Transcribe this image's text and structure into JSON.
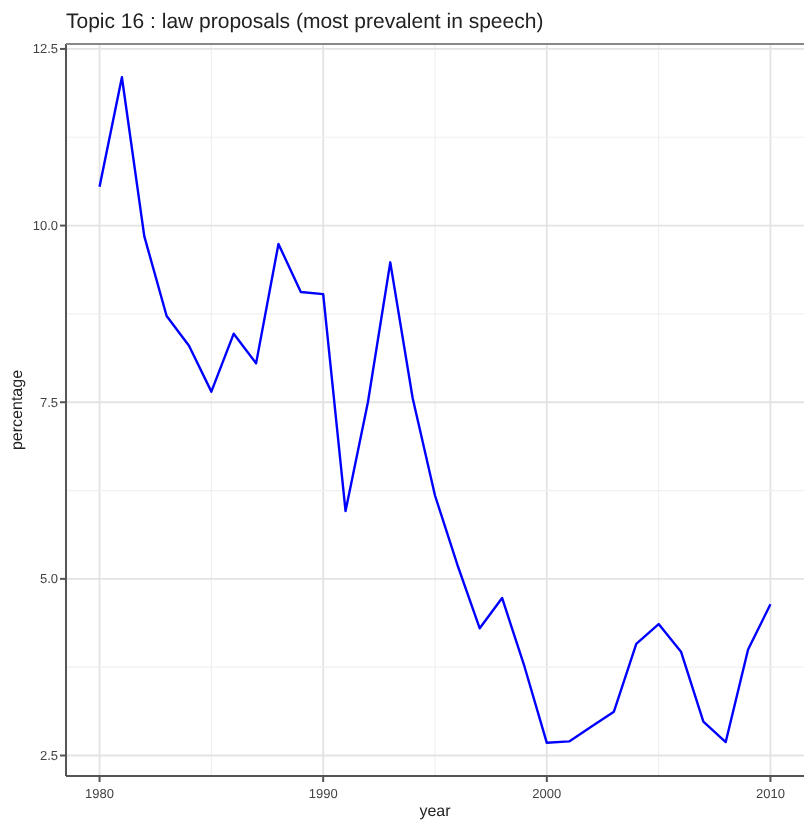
{
  "chart_data": {
    "type": "line",
    "title": "Topic 16 : law proposals (most prevalent in speech)",
    "xlabel": "year",
    "ylabel": "percentage",
    "x": [
      1980,
      1981,
      1982,
      1983,
      1984,
      1985,
      1986,
      1987,
      1988,
      1989,
      1990,
      1991,
      1992,
      1993,
      1994,
      1995,
      1996,
      1997,
      1998,
      1999,
      2000,
      2001,
      2002,
      2003,
      2004,
      2005,
      2006,
      2007,
      2008,
      2009,
      2010
    ],
    "series": [
      {
        "color": "#0000ff",
        "values": [
          10.55,
          12.1,
          9.85,
          8.72,
          8.3,
          7.65,
          8.47,
          8.05,
          9.74,
          9.06,
          9.03,
          5.96,
          7.5,
          9.48,
          7.56,
          6.18,
          5.2,
          4.3,
          4.73,
          3.76,
          2.68,
          2.7,
          2.91,
          3.12,
          4.08,
          4.36,
          3.97,
          2.98,
          2.69,
          4.0,
          4.64
        ]
      }
    ],
    "xlim": [
      1978.5,
      2011.5
    ],
    "ylim": [
      2.21,
      12.57
    ],
    "xticks": [
      1980,
      {
        "value": 1985,
        "label": null
      },
      1990,
      {
        "value": 1995,
        "label": null
      },
      2000,
      {
        "value": 2005,
        "label": null
      },
      2010
    ],
    "yticks": [
      {
        "value": 2.5,
        "label": "2.5"
      },
      {
        "value": 3.75,
        "label": null
      },
      {
        "value": 5,
        "label": "5.0"
      },
      {
        "value": 6.25,
        "label": null
      },
      {
        "value": 7.5,
        "label": "7.5"
      },
      {
        "value": 8.75,
        "label": null
      },
      {
        "value": 10,
        "label": "10.0"
      },
      {
        "value": 11.25,
        "label": null
      },
      {
        "value": 12.5,
        "label": "12.5"
      }
    ],
    "grid": true,
    "marker": "none",
    "line_style": "solid"
  }
}
